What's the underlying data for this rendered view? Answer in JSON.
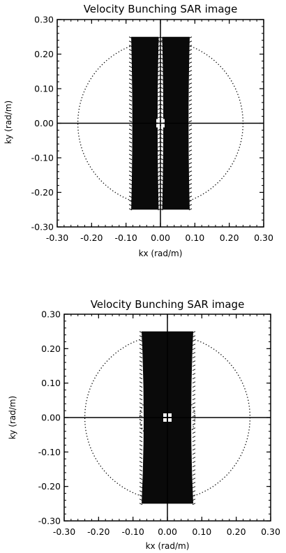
{
  "chart_data": [
    {
      "type": "heatmap",
      "title": "Velocity Bunching SAR image",
      "xlabel": "kx (rad/m)",
      "ylabel": "ky (rad/m)",
      "xlim": [
        -0.3,
        0.3
      ],
      "ylim": [
        -0.3,
        0.3
      ],
      "xticks": [
        "-0.30",
        "-0.20",
        "-0.10",
        "0.00",
        "0.10",
        "0.20",
        "0.30"
      ],
      "yticks": [
        "0.30",
        "0.20",
        "0.10",
        "0.00",
        "-0.10",
        "-0.20",
        "-0.30"
      ],
      "circles_radius": [
        0.08,
        0.24
      ],
      "lobes": [
        {
          "x_min": -0.085,
          "x_max": -0.005,
          "y_min": -0.25,
          "y_max": 0.25
        },
        {
          "x_min": 0.005,
          "x_max": 0.085,
          "y_min": -0.25,
          "y_max": 0.25
        }
      ],
      "center_spot": {
        "x": 0.0,
        "y": 0.0
      }
    },
    {
      "type": "heatmap",
      "title": "Velocity Bunching SAR image",
      "xlabel": "kx (rad/m)",
      "ylabel": "ky (rad/m)",
      "xlim": [
        -0.3,
        0.3
      ],
      "ylim": [
        -0.3,
        0.3
      ],
      "xticks": [
        "-0.30",
        "-0.20",
        "-0.10",
        "0.00",
        "0.10",
        "0.20",
        "0.30"
      ],
      "yticks": [
        "0.30",
        "0.20",
        "0.10",
        "0.00",
        "-0.10",
        "-0.20",
        "-0.30"
      ],
      "circles_radius": [
        0.08,
        0.24
      ],
      "lobes": [
        {
          "x_min": -0.075,
          "x_max": 0.075,
          "y_min": -0.25,
          "y_max": 0.25
        }
      ],
      "center_spot": {
        "x": 0.0,
        "y": 0.0
      }
    }
  ]
}
